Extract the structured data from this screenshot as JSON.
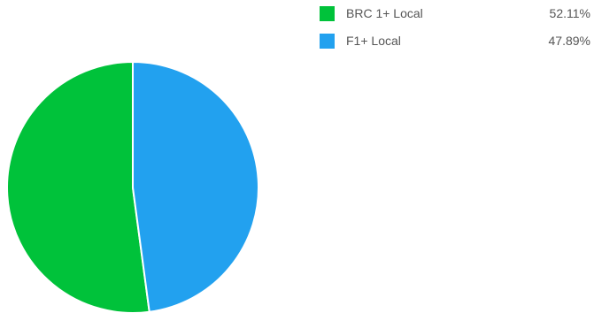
{
  "chart_data": {
    "type": "pie",
    "title": "",
    "legend_position": "top-right",
    "slices": [
      {
        "label": "BRC 1+ Local",
        "value": 52.11,
        "display": "52.11%",
        "color": "#00c23a"
      },
      {
        "label": "F1+ Local",
        "value": 47.89,
        "display": "47.89%",
        "color": "#22a1ef"
      }
    ]
  }
}
